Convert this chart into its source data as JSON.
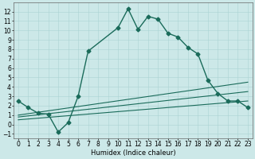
{
  "xlabel": "Humidex (Indice chaleur)",
  "bg_color": "#cce8e8",
  "line_color": "#1a6b5a",
  "ylim": [
    -1.5,
    13.0
  ],
  "xlim": [
    -0.5,
    23.5
  ],
  "yticks": [
    -1,
    0,
    1,
    2,
    3,
    4,
    5,
    6,
    7,
    8,
    9,
    10,
    11,
    12
  ],
  "xticks": [
    0,
    1,
    2,
    3,
    4,
    5,
    6,
    7,
    8,
    9,
    10,
    11,
    12,
    13,
    14,
    15,
    16,
    17,
    18,
    19,
    20,
    21,
    22,
    23
  ],
  "series": [
    {
      "x": [
        0,
        1,
        2,
        3,
        4,
        5,
        6,
        7,
        10,
        11,
        12,
        13,
        14,
        15,
        16,
        17,
        18,
        19,
        20,
        21,
        22,
        23
      ],
      "y": [
        2.5,
        1.8,
        1.2,
        1.1,
        -0.8,
        0.2,
        3.0,
        7.8,
        10.3,
        12.3,
        10.1,
        11.5,
        11.2,
        9.7,
        9.3,
        8.2,
        7.5,
        4.7,
        3.3,
        2.5,
        2.5,
        1.8
      ],
      "marker": "D",
      "markersize": 2.5,
      "linewidth": 1.0,
      "has_markers": true
    },
    {
      "x": [
        0,
        23
      ],
      "y": [
        1.0,
        4.5
      ],
      "marker": null,
      "linewidth": 0.8,
      "has_markers": false
    },
    {
      "x": [
        0,
        23
      ],
      "y": [
        0.8,
        3.5
      ],
      "marker": null,
      "linewidth": 0.8,
      "has_markers": false
    },
    {
      "x": [
        0,
        23
      ],
      "y": [
        0.5,
        2.5
      ],
      "marker": null,
      "linewidth": 0.8,
      "has_markers": false
    }
  ],
  "tick_labelsize": 5.5,
  "xlabel_fontsize": 6.0,
  "grid_color": "#aad4d4",
  "grid_linewidth": 0.4
}
